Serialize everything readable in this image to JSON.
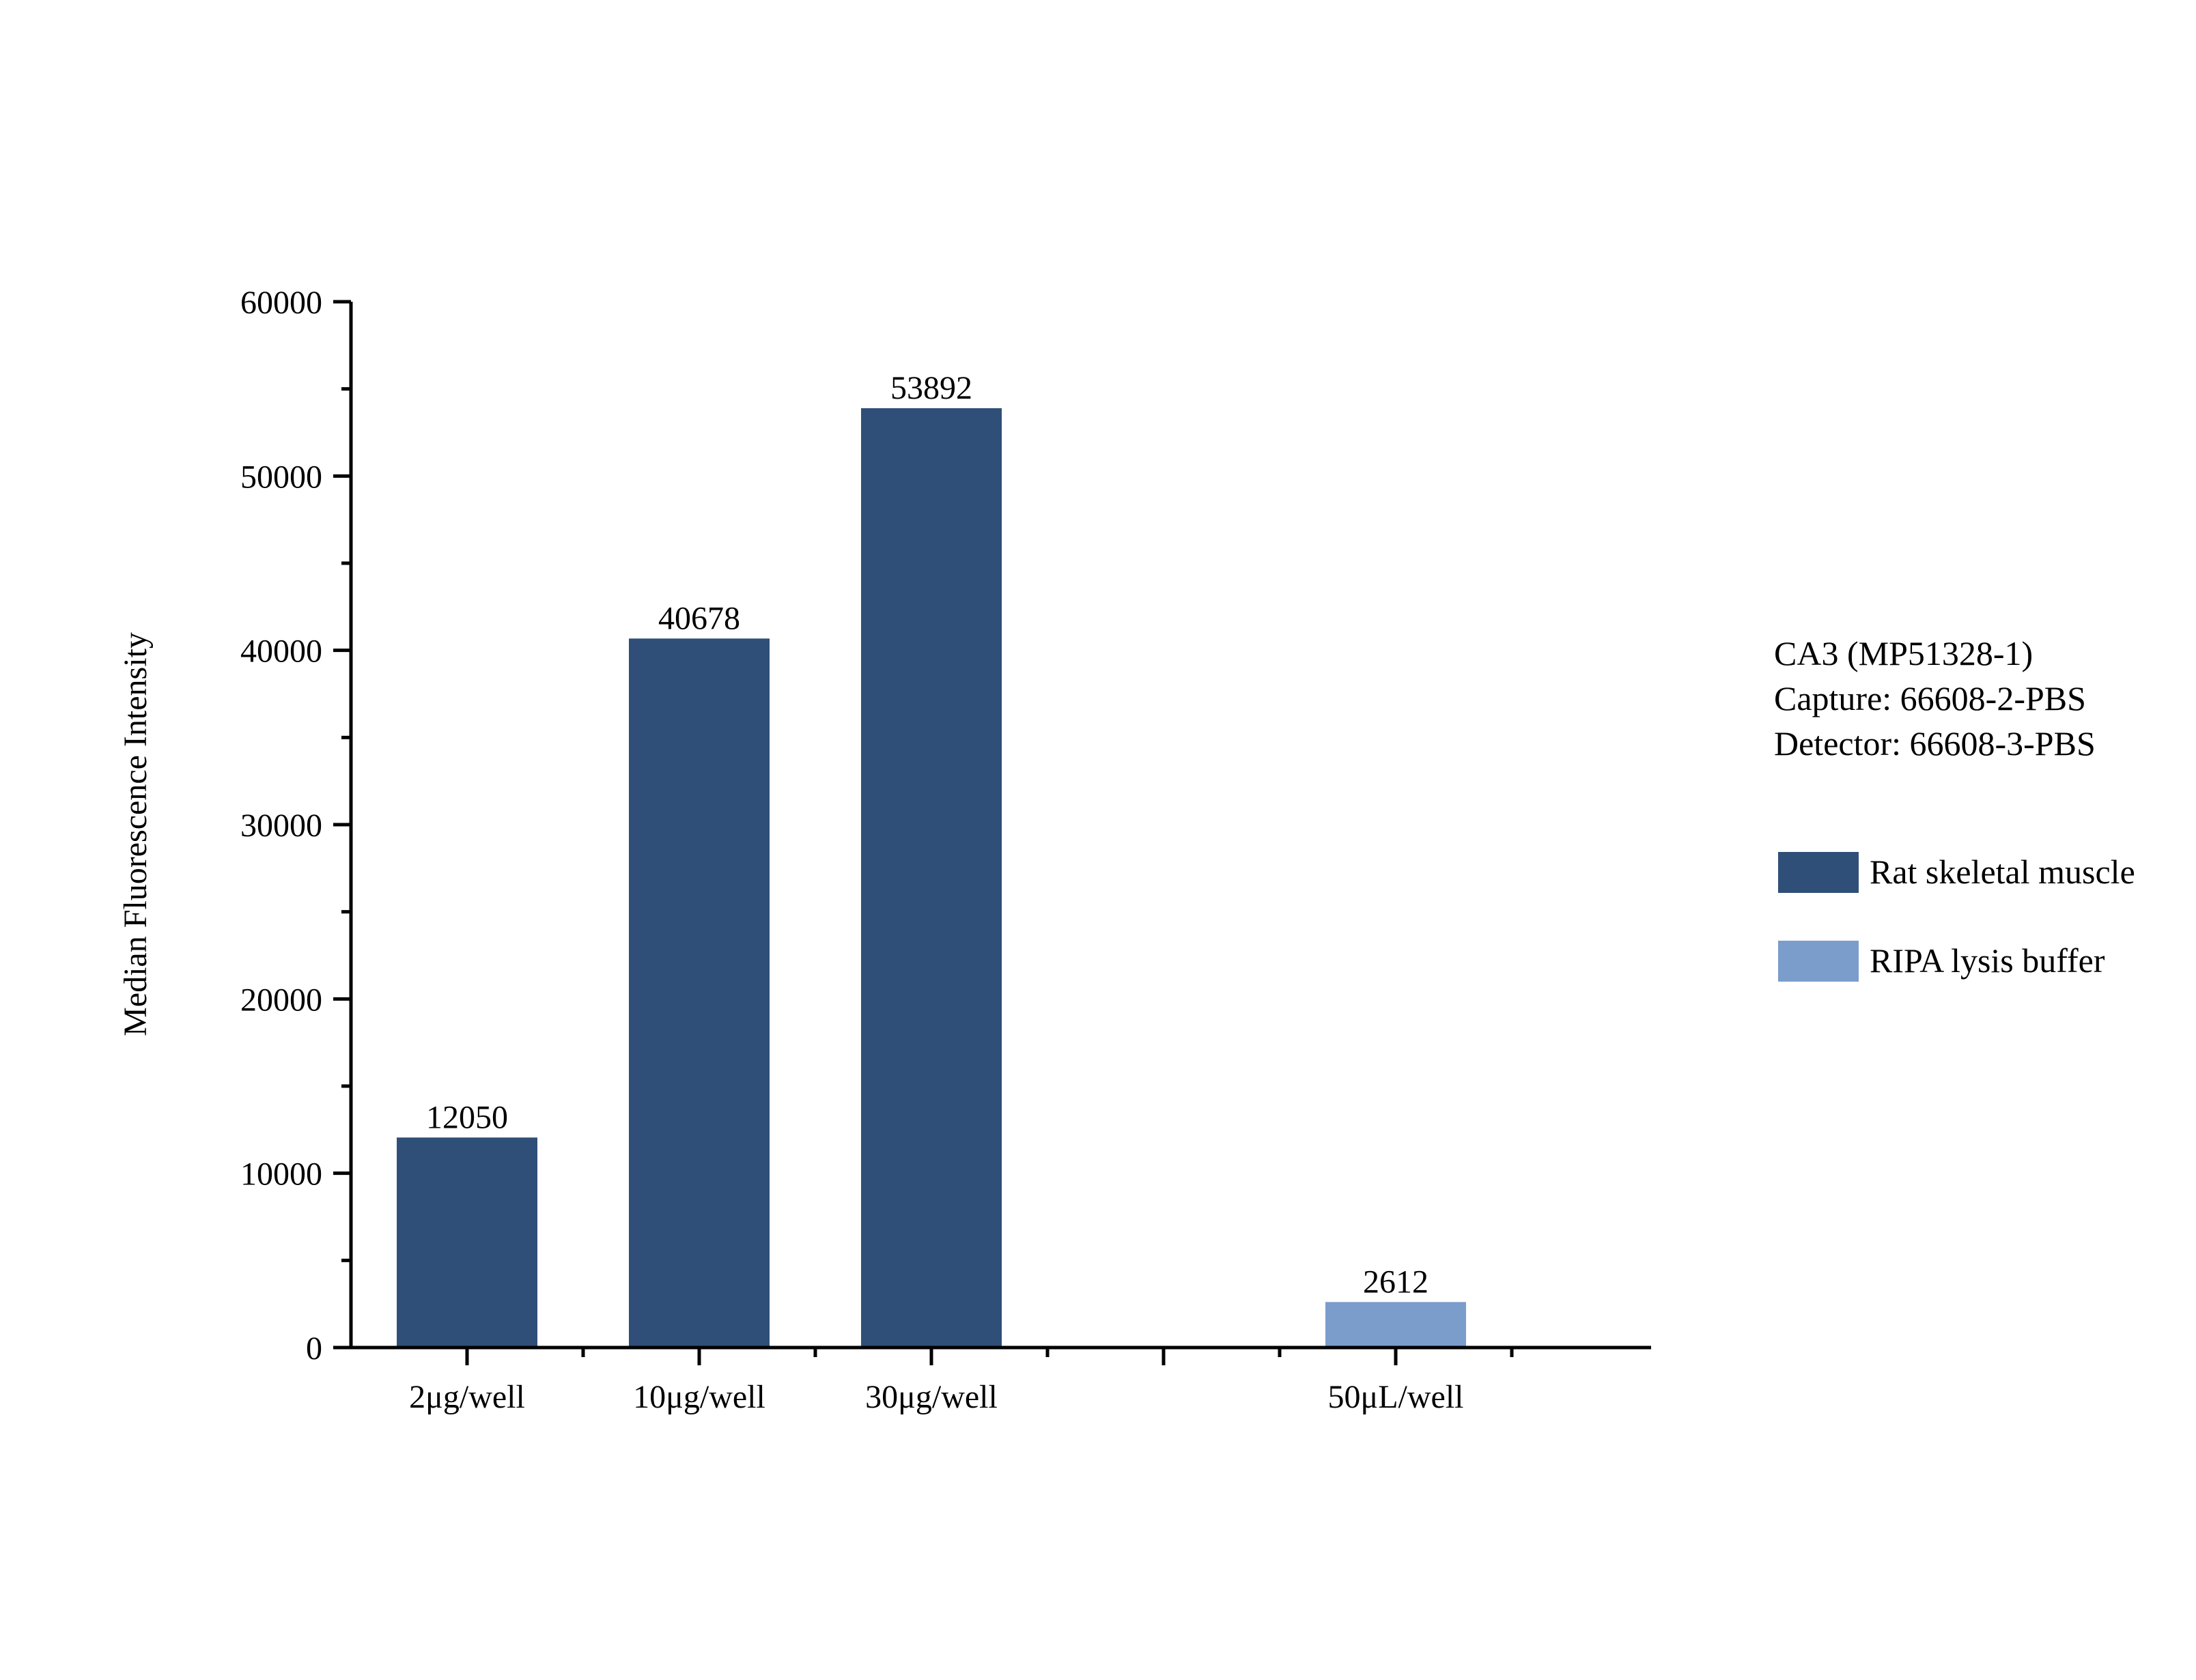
{
  "chart_data": {
    "type": "bar",
    "title": "",
    "xlabel": "",
    "ylabel": "Median Fluorescence Intensity",
    "ylim": [
      0,
      60000
    ],
    "y_major_ticks": [
      0,
      10000,
      20000,
      30000,
      40000,
      50000,
      60000
    ],
    "y_tick_labels": [
      "0",
      "10000",
      "20000",
      "30000",
      "40000",
      "50000",
      "60000"
    ],
    "grid": false,
    "legend_position": "right",
    "annotation_lines": [
      "CA3 (MP51328-1)",
      "Capture: 66608-2-PBS",
      "Detector: 66608-3-PBS"
    ],
    "series": [
      {
        "name": "Rat skeletal muscle",
        "color": "#2f4f78",
        "points": [
          {
            "category": "2μg/well",
            "value": 12050,
            "label": "12050"
          },
          {
            "category": "10μg/well",
            "value": 40678,
            "label": "40678"
          },
          {
            "category": "30μg/well",
            "value": 53892,
            "label": "53892"
          }
        ]
      },
      {
        "name": "RIPA lysis buffer",
        "color": "#7b9dcc",
        "points": [
          {
            "category": "50μL/well",
            "value": 2612,
            "label": "2612"
          }
        ]
      }
    ]
  }
}
